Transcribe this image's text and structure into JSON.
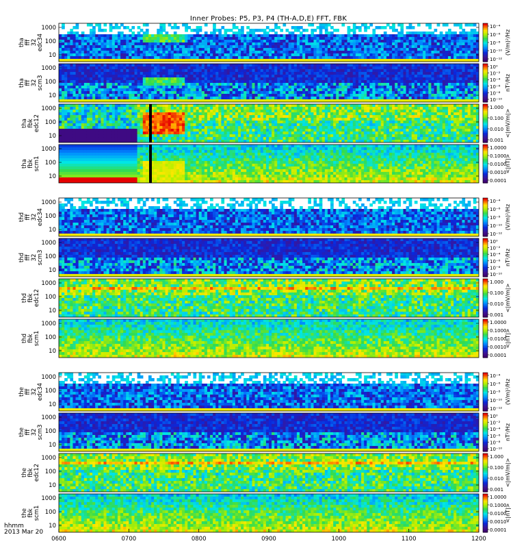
{
  "chart_data": {
    "type": "heatmap",
    "title": "Inner Probes: P5, P3, P4 (TH-A,D,E) FFT, FBK",
    "date_label": "2013 Mar 20",
    "time_axis_label": "hhmm",
    "x_ticks": [
      "0600",
      "0700",
      "0800",
      "0900",
      "1000",
      "1100",
      "1200"
    ],
    "x_range": [
      "0600",
      "1200"
    ],
    "y_scale": "log",
    "y_ticks": [
      "10",
      "100",
      "1000"
    ],
    "panel_types": {
      "fff_e": {
        "colorbar_label": "(V/m)²/Hz",
        "colorbar_ticks": [
          "10⁻⁴",
          "10⁻⁶",
          "10⁻⁸",
          "10⁻¹⁰",
          "10⁻¹²"
        ]
      },
      "fff_b": {
        "colorbar_label": "nT²/Hz",
        "colorbar_ticks": [
          "10⁰",
          "10⁻²",
          "10⁻⁴",
          "10⁻⁶",
          "10⁻⁸",
          "10⁻¹⁰"
        ]
      },
      "fbk_e": {
        "colorbar_label": "<|mV/m|>",
        "colorbar_ticks": [
          "1.000",
          "0.100",
          "0.010",
          "0.001"
        ]
      },
      "fbk_b": {
        "colorbar_label": "<|nT|>",
        "colorbar_ticks": [
          "1.0000",
          "0.1000",
          "0.0100",
          "0.0010",
          "0.0001"
        ]
      }
    },
    "panels": [
      {
        "label": [
          "tha",
          "fff",
          "32",
          "edc34"
        ],
        "type": "fff_e",
        "group": 0
      },
      {
        "label": [
          "tha",
          "fff",
          "32",
          "scm3"
        ],
        "type": "fff_b",
        "group": 0
      },
      {
        "label": [
          "tha",
          "fbk",
          "edc12"
        ],
        "type": "fbk_e",
        "group": 0
      },
      {
        "label": [
          "tha",
          "fbk",
          "scm1"
        ],
        "type": "fbk_b",
        "group": 0
      },
      {
        "label": [
          "thd",
          "fff",
          "32",
          "edc34"
        ],
        "type": "fff_e",
        "group": 1
      },
      {
        "label": [
          "thd",
          "fff",
          "32",
          "scm3"
        ],
        "type": "fff_b",
        "group": 1
      },
      {
        "label": [
          "thd",
          "fbk",
          "edc12"
        ],
        "type": "fbk_e",
        "group": 1
      },
      {
        "label": [
          "thd",
          "fbk",
          "scm1"
        ],
        "type": "fbk_b",
        "group": 1
      },
      {
        "label": [
          "the",
          "fff",
          "32",
          "edc34"
        ],
        "type": "fff_e",
        "group": 2
      },
      {
        "label": [
          "the",
          "fff",
          "32",
          "scm3"
        ],
        "type": "fff_b",
        "group": 2
      },
      {
        "label": [
          "the",
          "fbk",
          "edc12"
        ],
        "type": "fbk_e",
        "group": 2
      },
      {
        "label": [
          "the",
          "fbk",
          "scm1"
        ],
        "type": "fbk_b",
        "group": 2
      }
    ]
  }
}
